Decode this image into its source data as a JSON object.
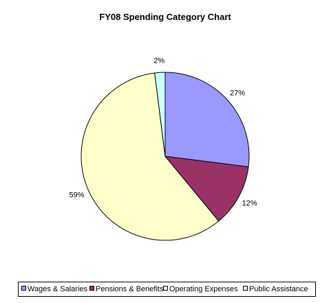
{
  "chart_data": {
    "type": "pie",
    "title": "FY08 Spending Category Chart",
    "categories": [
      "Wages & Salaries",
      "Pensions & Benefits",
      "Operating Expenses",
      "Public Assistance"
    ],
    "values": [
      27,
      12,
      59,
      2
    ],
    "data_labels": [
      "27%",
      "12%",
      "59%",
      "2%"
    ],
    "colors": [
      "#9999ff",
      "#993366",
      "#ffffcc",
      "#ccffff"
    ],
    "legend_position": "bottom",
    "start_angle": "12 o'clock",
    "direction": "clockwise"
  }
}
